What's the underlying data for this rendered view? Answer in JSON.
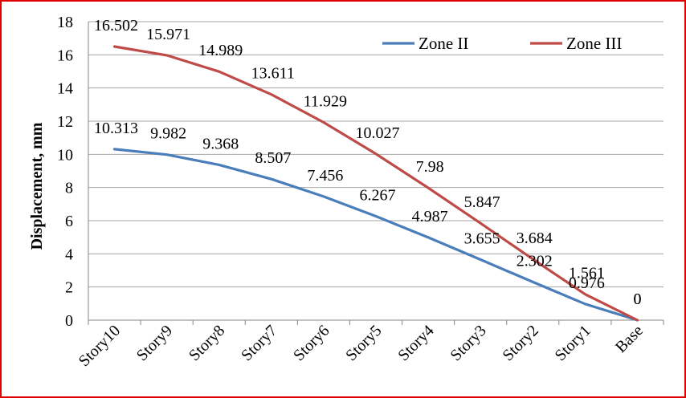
{
  "chart_data": {
    "type": "line",
    "categories": [
      "Story10",
      "Story9",
      "Story8",
      "Story7",
      "Story6",
      "Story5",
      "Story4",
      "Story3",
      "Story2",
      "Story1",
      "Base"
    ],
    "series": [
      {
        "name": "Zone II",
        "color": "#4a7ebb",
        "values": [
          10.313,
          9.982,
          9.368,
          8.507,
          7.456,
          6.267,
          4.987,
          3.655,
          2.302,
          0.976,
          0
        ],
        "labels": [
          "10.313",
          "9.982",
          "9.368",
          "8.507",
          "7.456",
          "6.267",
          "4.987",
          "3.655",
          "2.302",
          "0.976",
          "0"
        ]
      },
      {
        "name": "Zone III",
        "color": "#be4b48",
        "values": [
          16.502,
          15.971,
          14.989,
          13.611,
          11.929,
          10.027,
          7.98,
          5.847,
          3.684,
          1.561,
          0
        ],
        "labels": [
          "16.502",
          "15.971",
          "14.989",
          "13.611",
          "11.929",
          "10.027",
          "7.98",
          "5.847",
          "3.684",
          "1.561",
          "0"
        ]
      }
    ],
    "title": "",
    "xlabel": "",
    "ylabel": "Displacement, mm",
    "ylim": [
      0,
      18
    ],
    "yticks": [
      "0",
      "2",
      "4",
      "6",
      "8",
      "10",
      "12",
      "14",
      "16",
      "18"
    ],
    "grid": true,
    "legend": "top-right",
    "frame_color": "#e00000"
  }
}
